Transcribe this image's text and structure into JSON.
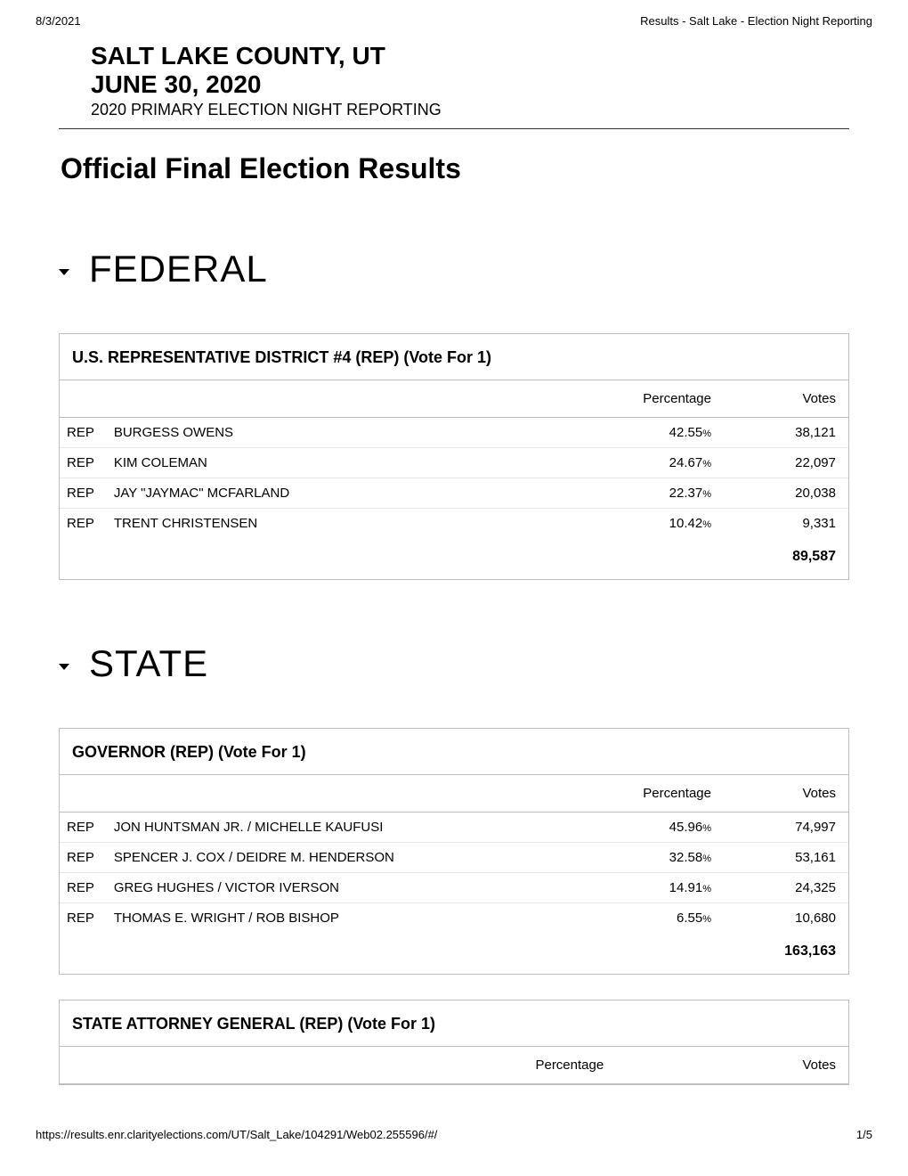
{
  "header": {
    "date": "8/3/2021",
    "doc_title": "Results - Salt Lake - Election Night Reporting"
  },
  "title": {
    "line1": "SALT LAKE COUNTY, UT",
    "line2": "JUNE 30, 2020",
    "subtitle": "2020 PRIMARY ELECTION NIGHT REPORTING"
  },
  "results_heading": "Official Final Election Results",
  "headers": {
    "percentage": "Percentage",
    "votes": "Votes"
  },
  "sections": [
    {
      "title": "FEDERAL",
      "races": [
        {
          "title": "U.S. REPRESENTATIVE DISTRICT #4 (REP) (Vote For 1)",
          "rows": [
            {
              "party": "REP",
              "name": "BURGESS OWENS",
              "pct": "42.55",
              "votes": "38,121"
            },
            {
              "party": "REP",
              "name": "KIM COLEMAN",
              "pct": "24.67",
              "votes": "22,097"
            },
            {
              "party": "REP",
              "name": "JAY \"JAYMAC\" MCFARLAND",
              "pct": "22.37",
              "votes": "20,038"
            },
            {
              "party": "REP",
              "name": "TRENT CHRISTENSEN",
              "pct": "10.42",
              "votes": "9,331"
            }
          ],
          "total": "89,587"
        }
      ]
    },
    {
      "title": "STATE",
      "races": [
        {
          "title": "GOVERNOR (REP) (Vote For 1)",
          "rows": [
            {
              "party": "REP",
              "name": "JON HUNTSMAN JR. / MICHELLE KAUFUSI",
              "pct": "45.96",
              "votes": "74,997"
            },
            {
              "party": "REP",
              "name": "SPENCER J. COX / DEIDRE M. HENDERSON",
              "pct": "32.58",
              "votes": "53,161"
            },
            {
              "party": "REP",
              "name": "GREG HUGHES / VICTOR IVERSON",
              "pct": "14.91",
              "votes": "24,325"
            },
            {
              "party": "REP",
              "name": "THOMAS E. WRIGHT / ROB BISHOP",
              "pct": "6.55",
              "votes": "10,680"
            }
          ],
          "total": "163,163"
        },
        {
          "title": "STATE ATTORNEY GENERAL (REP) (Vote For 1)",
          "rows": [],
          "total": null
        }
      ]
    }
  ],
  "footer": {
    "url": "https://results.enr.clarityelections.com/UT/Salt_Lake/104291/Web02.255596/#/",
    "page": "1/5"
  }
}
